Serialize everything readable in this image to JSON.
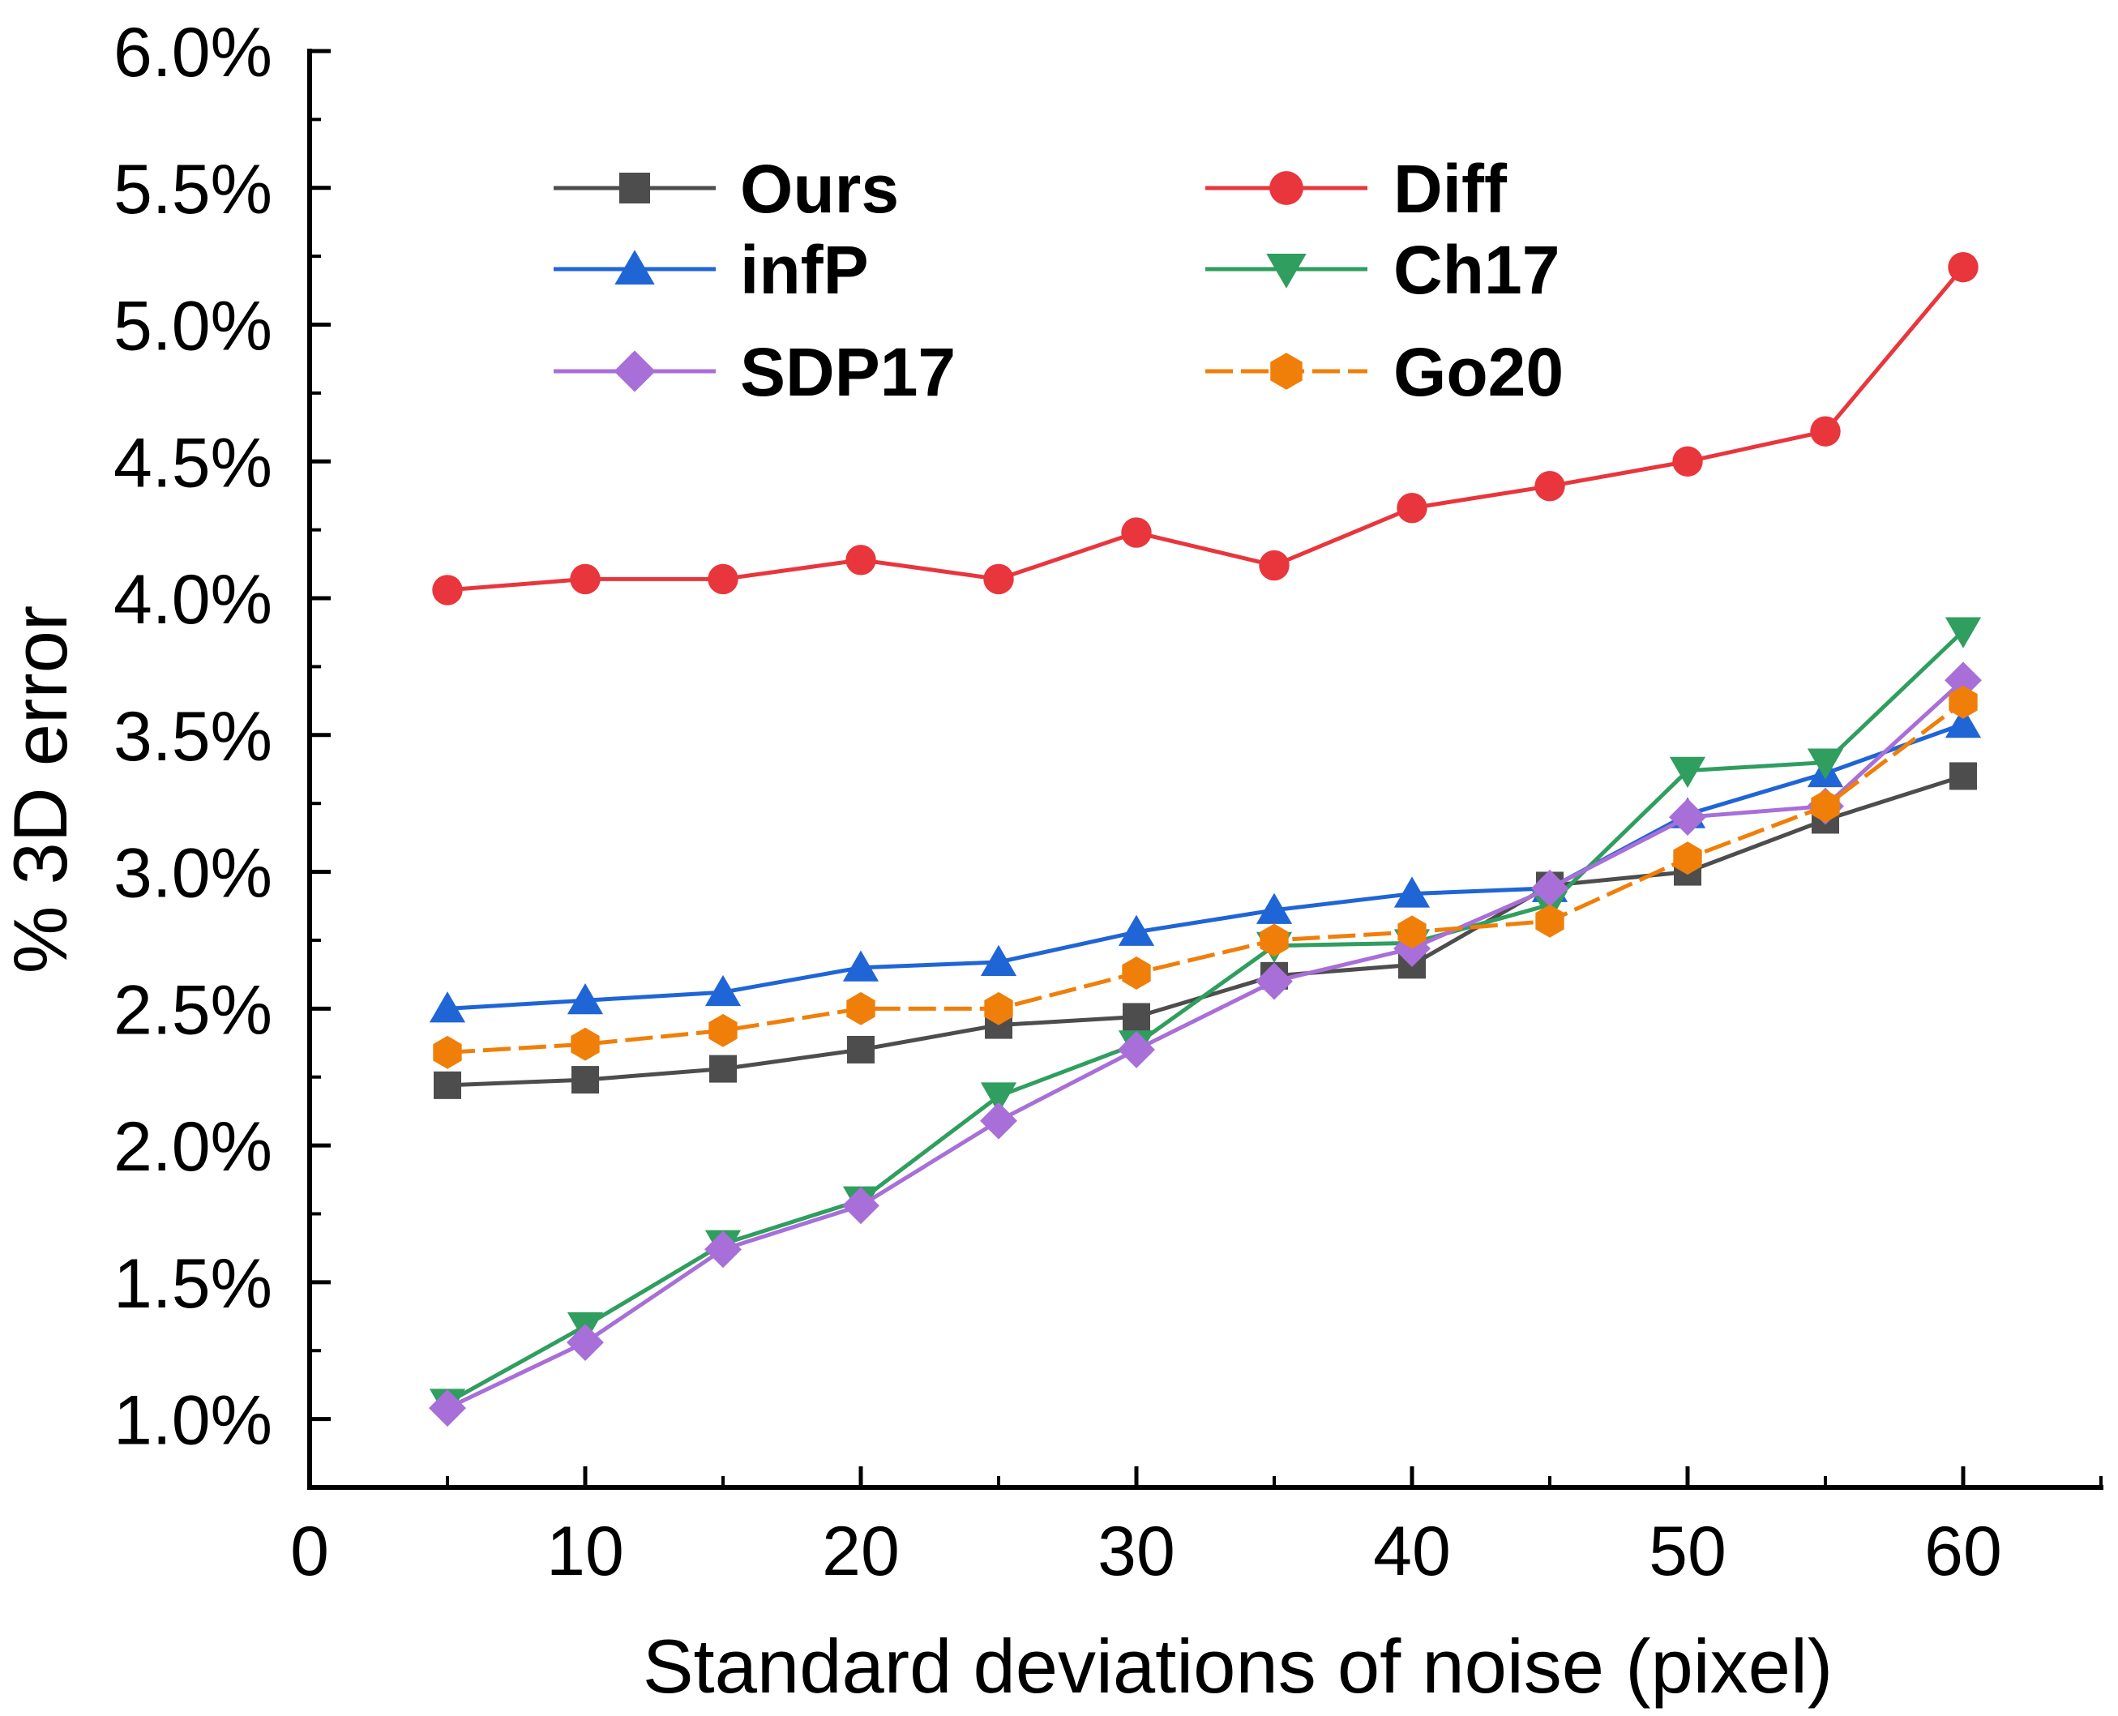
{
  "chart_data": {
    "type": "line",
    "title": "",
    "xlabel": "Standard deviations of noise (pixel)",
    "ylabel": "% 3D error",
    "xlim": [
      0,
      65
    ],
    "ylim": [
      0.75,
      6.0
    ],
    "x_ticks": [
      0,
      10,
      20,
      30,
      40,
      50,
      60
    ],
    "x_tick_labels": [
      "0",
      "10",
      "20",
      "30",
      "40",
      "50",
      "60"
    ],
    "y_ticks": [
      1.0,
      1.5,
      2.0,
      2.5,
      3.0,
      3.5,
      4.0,
      4.5,
      5.0,
      5.5,
      6.0
    ],
    "y_tick_labels": [
      "1.0%",
      "1.5%",
      "2.0%",
      "2.5%",
      "3.0%",
      "3.5%",
      "4.0%",
      "4.5%",
      "5.0%",
      "5.5%",
      "6.0%"
    ],
    "grid": false,
    "legend_position": "top-left",
    "x": [
      5,
      10,
      15,
      20,
      25,
      30,
      35,
      40,
      45,
      50,
      55,
      60
    ],
    "series": [
      {
        "name": "Ours",
        "color": "#4d4d4d",
        "marker": "square",
        "dashed": false,
        "values": [
          2.22,
          2.24,
          2.28,
          2.35,
          2.44,
          2.47,
          2.62,
          2.66,
          2.95,
          3.0,
          3.19,
          3.35
        ]
      },
      {
        "name": "Diff",
        "color": "#e8363c",
        "marker": "circle",
        "dashed": false,
        "values": [
          4.03,
          4.07,
          4.07,
          4.14,
          4.07,
          4.24,
          4.12,
          4.33,
          4.41,
          4.5,
          4.61,
          5.21
        ]
      },
      {
        "name": "infP",
        "color": "#1f65d6",
        "marker": "triangle-up",
        "dashed": false,
        "values": [
          2.5,
          2.53,
          2.56,
          2.65,
          2.67,
          2.78,
          2.86,
          2.92,
          2.94,
          3.21,
          3.36,
          3.54
        ]
      },
      {
        "name": "Ch17",
        "color": "#2f9e5e",
        "marker": "triangle-down",
        "dashed": false,
        "values": [
          1.06,
          1.34,
          1.64,
          1.8,
          2.18,
          2.37,
          2.73,
          2.74,
          2.88,
          3.37,
          3.4,
          3.88
        ]
      },
      {
        "name": "SDP17",
        "color": "#a86fd8",
        "marker": "diamond",
        "dashed": false,
        "values": [
          1.04,
          1.28,
          1.62,
          1.78,
          2.09,
          2.35,
          2.6,
          2.72,
          2.94,
          3.2,
          3.24,
          3.7
        ]
      },
      {
        "name": "Go20",
        "color": "#f07f09",
        "marker": "hexagon",
        "dashed": true,
        "values": [
          2.34,
          2.37,
          2.42,
          2.5,
          2.5,
          2.63,
          2.75,
          2.78,
          2.82,
          3.05,
          3.24,
          3.62
        ]
      }
    ]
  }
}
